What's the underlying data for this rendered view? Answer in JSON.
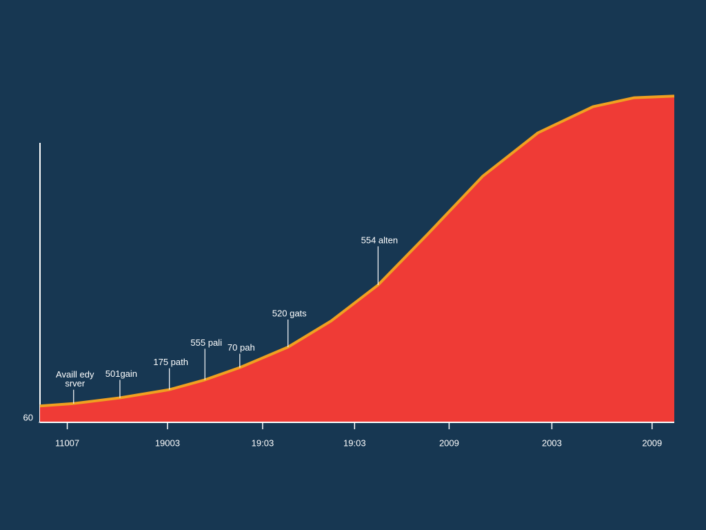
{
  "chart_data": {
    "type": "area",
    "series": [
      {
        "color": "#ef3b36",
        "line_color": "#f0a020",
        "x": [
          0,
          5.3,
          12.6,
          20.4,
          26.0,
          31.5,
          39.1,
          45.9,
          53.3,
          61.1,
          69.8,
          78.5,
          87.2,
          93.7,
          100
        ],
        "values": [
          62.0,
          62.3,
          63.0,
          64.0,
          65.2,
          66.7,
          69.2,
          72.4,
          76.8,
          83.0,
          90.1,
          95.4,
          98.6,
          99.7,
          99.9
        ]
      }
    ],
    "xlim": [
      0,
      100
    ],
    "xticks": [
      {
        "value": 4.3,
        "label": "11007"
      },
      {
        "value": 20.1,
        "label": "19003"
      },
      {
        "value": 35.1,
        "label": "19:03"
      },
      {
        "value": 49.6,
        "label": "19:03"
      },
      {
        "value": 64.5,
        "label": "2009"
      },
      {
        "value": 80.7,
        "label": "2003"
      },
      {
        "value": 96.5,
        "label": "2009"
      }
    ],
    "ylim": [
      60,
      100
    ],
    "yticks": [
      60
    ],
    "annotations": [
      {
        "lines": [
          "Availl edy",
          "srver"
        ],
        "x": 5.3,
        "y": 62.3
      },
      {
        "lines": [
          "501gain"
        ],
        "x": 12.6,
        "y": 63.0
      },
      {
        "lines": [
          "175 path"
        ],
        "x": 20.4,
        "y": 64.0
      },
      {
        "lines": [
          "555 pali"
        ],
        "x": 26.0,
        "y": 65.2
      },
      {
        "lines": [
          "70 pah"
        ],
        "x": 31.5,
        "y": 66.7
      },
      {
        "lines": [
          "520 gats"
        ],
        "x": 39.1,
        "y": 69.2
      },
      {
        "lines": [
          "554 alten"
        ],
        "x": 53.3,
        "y": 76.8
      }
    ]
  }
}
